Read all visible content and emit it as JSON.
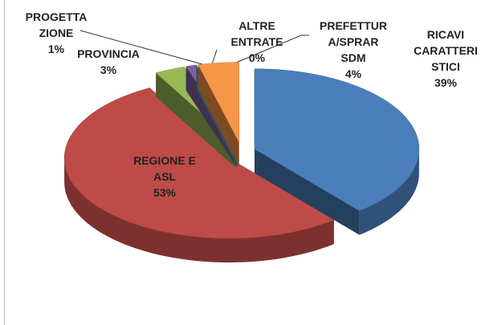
{
  "chart_data": {
    "type": "pie3d",
    "categories": [
      "RICAVI\nCARATTERI\nSTICI",
      "REGIONE E\nASL",
      "PROVINCIA",
      "PROGETTA\nZIONE",
      "ALTRE\nENTRATE",
      "PREFETTUR\nA/SPRAR\nSDM"
    ],
    "values": [
      39,
      53,
      3,
      1,
      0,
      4
    ],
    "value_labels": [
      "39%",
      "53%",
      "3%",
      "1%",
      "0%",
      "4%"
    ],
    "colors": [
      "#4a7ebb",
      "#be4b48",
      "#98b954",
      "#7d60a0",
      "#46aac5",
      "#f79646"
    ]
  }
}
